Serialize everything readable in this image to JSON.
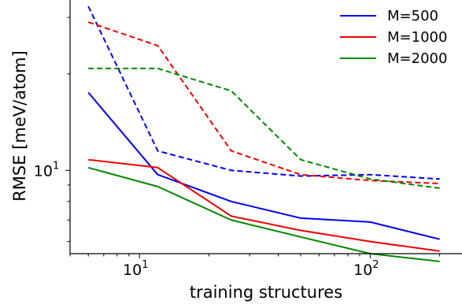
{
  "chart_data": {
    "type": "line",
    "xscale": "log",
    "yscale": "log",
    "xlabel": "training structures",
    "ylabel": "RMSE [meV/atom]",
    "xlim": [
      5,
      250
    ],
    "ylim": [
      5.5,
      34
    ],
    "x_ticks": [
      {
        "value": 10,
        "base": "10",
        "exp": "1"
      },
      {
        "value": 100,
        "base": "10",
        "exp": "2"
      }
    ],
    "y_ticks": [
      {
        "value": 10,
        "base": "10",
        "exp": "1"
      }
    ],
    "grid": false,
    "legend_position": "top-right",
    "series": [
      {
        "name": "M=500",
        "color": "#0000ee",
        "style": "solid",
        "x": [
          6,
          12,
          25,
          50,
          100,
          200
        ],
        "y": [
          17.5,
          9.7,
          8.0,
          7.1,
          6.9,
          6.1
        ]
      },
      {
        "name": "M=1000",
        "color": "#ee0000",
        "style": "solid",
        "x": [
          6,
          12,
          25,
          50,
          100,
          200
        ],
        "y": [
          10.8,
          10.2,
          7.2,
          6.5,
          6.0,
          5.6
        ]
      },
      {
        "name": "M=2000",
        "color": "#008800",
        "style": "solid",
        "x": [
          6,
          12,
          25,
          50,
          100,
          200
        ],
        "y": [
          10.2,
          8.9,
          7.0,
          6.2,
          5.5,
          5.2
        ]
      },
      {
        "name": "",
        "color": "#0000ee",
        "style": "dashed",
        "x": [
          6,
          12,
          25,
          50,
          100,
          200
        ],
        "y": [
          32.5,
          11.5,
          10.0,
          9.6,
          9.7,
          9.4
        ]
      },
      {
        "name": "",
        "color": "#ee0000",
        "style": "dashed",
        "x": [
          6,
          12,
          25,
          50,
          100,
          200
        ],
        "y": [
          29.0,
          24.5,
          11.5,
          9.7,
          9.3,
          9.1
        ]
      },
      {
        "name": "",
        "color": "#008800",
        "style": "dashed",
        "x": [
          6,
          12,
          25,
          50,
          100,
          200
        ],
        "y": [
          20.8,
          20.8,
          17.7,
          10.8,
          9.4,
          8.8
        ]
      }
    ]
  }
}
